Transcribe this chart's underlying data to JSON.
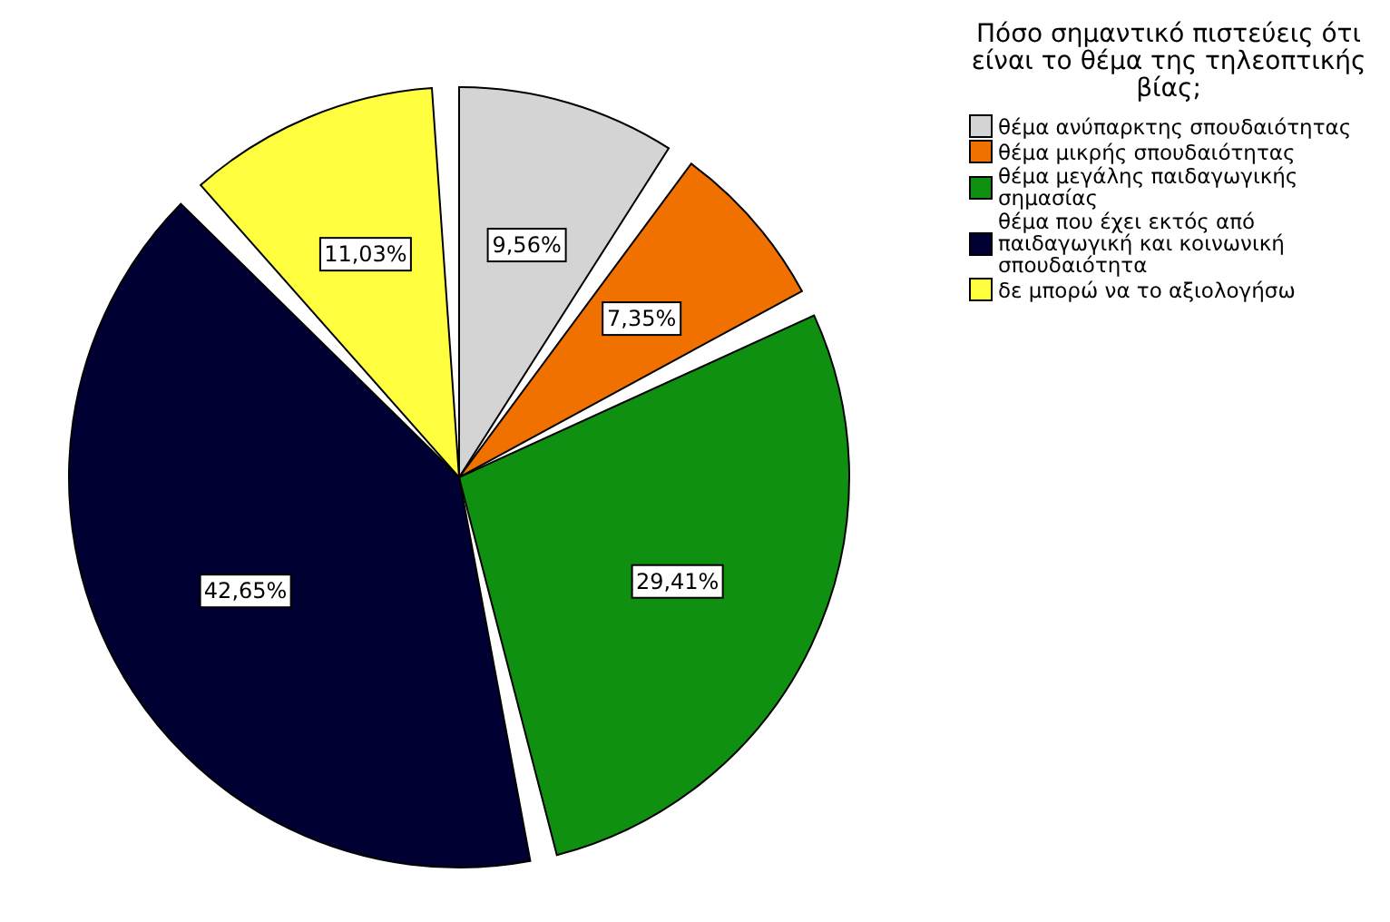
{
  "chart_data": {
    "type": "pie",
    "legend_title": "Πόσο σημαντικό πιστεύεις ότι είναι το θέμα της τηλεοπτικής βίας;",
    "categories": [
      "θέμα ανύπαρκτης σπουδαιότητας",
      "θέμα μικρής σπουδαιότητας",
      "θέμα μεγάλης παιδαγωγικής σημασίας",
      "θέμα που έχει εκτός από παιδαγωγική και κοινωνική σπουδαιότητα",
      "δε μπορώ να το αξιολογήσω"
    ],
    "values": [
      9.56,
      7.35,
      29.41,
      42.65,
      11.03
    ],
    "value_labels": [
      "9,56%",
      "7,35%",
      "29,41%",
      "42,65%",
      "11,03%"
    ],
    "colors": [
      "#d4d4d4",
      "#f07000",
      "#109010",
      "#000033",
      "#ffff40"
    ],
    "legend": "top right"
  }
}
